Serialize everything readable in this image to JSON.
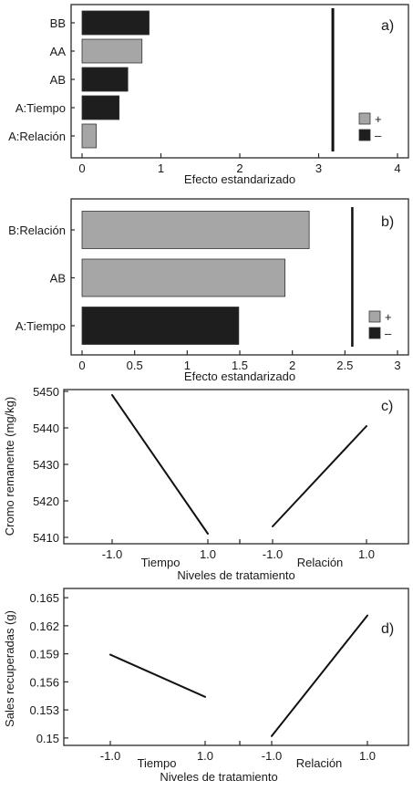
{
  "colors": {
    "positive": "#a6a6a6",
    "negative": "#1e1e1e",
    "frame": "#2a2a2a",
    "line": "#111111"
  },
  "chart_data": [
    {
      "id": "a",
      "type": "bar",
      "orientation": "horizontal",
      "panel_label": "a)",
      "xlabel": "Efecto estandarizado",
      "xlim": [
        0,
        4
      ],
      "xticks": [
        "0",
        "1",
        "2",
        "3",
        "4"
      ],
      "categories": [
        "BB",
        "AA",
        "AB",
        "A:Tiempo",
        "A:Relación"
      ],
      "values": [
        0.85,
        0.76,
        0.58,
        0.47,
        0.18
      ],
      "signs": [
        "-",
        "+",
        "-",
        "-",
        "+"
      ],
      "reference_line": 3.18,
      "legend": {
        "position": "bottom-right",
        "entries": [
          {
            "label": "+",
            "sign": "+"
          },
          {
            "label": "–",
            "sign": "-"
          }
        ]
      }
    },
    {
      "id": "b",
      "type": "bar",
      "orientation": "horizontal",
      "panel_label": "b)",
      "xlabel": "Efecto estandarizado",
      "xlim": [
        0,
        3
      ],
      "xticks": [
        "0",
        "0.5",
        "1",
        "1.5",
        "2",
        "2.5",
        "3"
      ],
      "categories": [
        "B:Relación",
        "AB",
        "A:Tiempo"
      ],
      "values": [
        2.16,
        1.93,
        1.49
      ],
      "signs": [
        "+",
        "+",
        "-"
      ],
      "reference_line": 2.57,
      "legend": {
        "position": "bottom-right",
        "entries": [
          {
            "label": "+",
            "sign": "+"
          },
          {
            "label": "–",
            "sign": "-"
          }
        ]
      }
    },
    {
      "id": "c",
      "type": "line",
      "panel_label": "c)",
      "ylabel": "Cromo remanente (mg/kg)",
      "xlabel": "Niveles de tratamiento",
      "ylim": [
        5409,
        5450
      ],
      "yticks": [
        "5410",
        "5420",
        "5430",
        "5440",
        "5450"
      ],
      "factor_labels": [
        "Tiempo",
        "Relación"
      ],
      "level_labels": [
        "-1.0",
        "1.0"
      ],
      "series": [
        {
          "factor": "Tiempo",
          "x": [
            -1.0,
            1.0
          ],
          "y": [
            5449,
            5411
          ]
        },
        {
          "factor": "Relación",
          "x": [
            -1.0,
            1.0
          ],
          "y": [
            5413,
            5440.5
          ]
        }
      ]
    },
    {
      "id": "d",
      "type": "line",
      "panel_label": "d)",
      "ylabel": "Sales recuperadas (g)",
      "xlabel": "Niveles de tratamiento",
      "ylim": [
        0.1495,
        0.1655
      ],
      "yticks": [
        "0.15",
        "0.153",
        "0.156",
        "0.159",
        "0.162",
        "0.165"
      ],
      "factor_labels": [
        "Tiempo",
        "Relación"
      ],
      "level_labels": [
        "-1.0",
        "1.0"
      ],
      "series": [
        {
          "factor": "Tiempo",
          "x": [
            -1.0,
            1.0
          ],
          "y": [
            0.1589,
            0.1544
          ]
        },
        {
          "factor": "Relación",
          "x": [
            -1.0,
            1.0
          ],
          "y": [
            0.1502,
            0.1631
          ]
        }
      ]
    }
  ]
}
